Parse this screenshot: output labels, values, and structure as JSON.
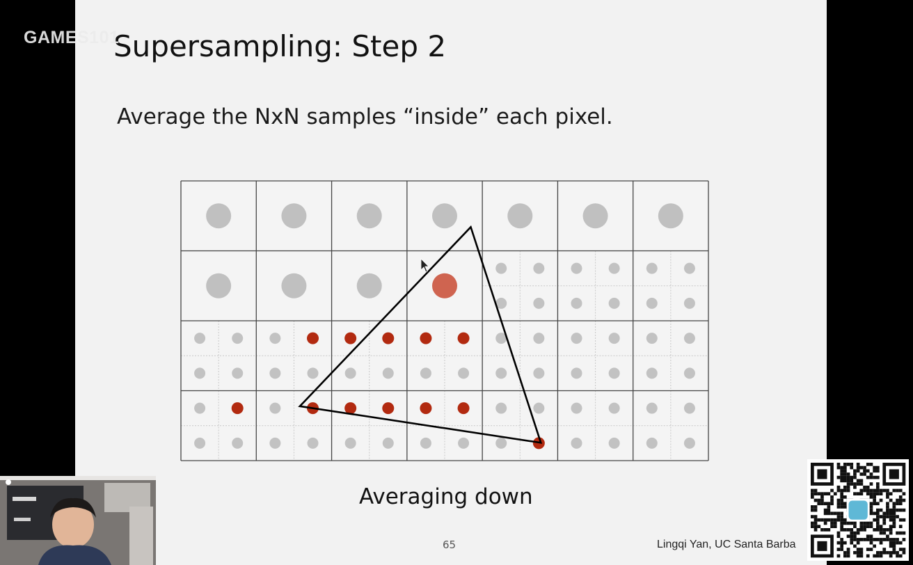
{
  "watermark": {
    "text": "GAMES101"
  },
  "slide": {
    "title": "Supersampling: Step 2",
    "subtitle": "Average the NxN samples “inside” each pixel.",
    "caption": "Averaging down",
    "page_number": "65",
    "credit": "Lingqi Yan, UC Santa Barba"
  },
  "figure": {
    "columns": 7,
    "rows": 4,
    "colors": {
      "averaged_sample": "#c0c0c0",
      "averaged_inside": "#cf6450",
      "subsample_outside": "#c2c2c2",
      "subsample_inside": "#b22a10",
      "grid_line": "#444444",
      "subgrid_line": "#c8c8c8"
    },
    "cells": [
      [
        "avg",
        "avg",
        "avg",
        "avg",
        "avg",
        "avg",
        "avg"
      ],
      [
        "avg",
        "avg",
        "avg",
        "avg-in",
        "sub",
        "sub",
        "sub"
      ],
      [
        "sub",
        "sub",
        "sub",
        "sub",
        "sub",
        "sub",
        "sub"
      ],
      [
        "sub",
        "sub",
        "sub",
        "sub",
        "sub",
        "sub",
        "sub"
      ]
    ],
    "inside_subsamples": [
      [
        4,
        3
      ],
      [
        5,
        3
      ],
      [
        6,
        3
      ],
      [
        7,
        3
      ],
      [
        4,
        4
      ],
      [
        5,
        4
      ],
      [
        6,
        4
      ],
      [
        7,
        4
      ],
      [
        3,
        4
      ],
      [
        1,
        6
      ],
      [
        3,
        6
      ],
      [
        4,
        6
      ],
      [
        5,
        6
      ],
      [
        6,
        6
      ],
      [
        7,
        6
      ],
      [
        9,
        7
      ]
    ],
    "triangle_vertices": [
      [
        3.846,
        0.66
      ],
      [
        1.578,
        3.222
      ],
      [
        4.776,
        3.744
      ]
    ]
  },
  "webcam": {
    "icon": "presenter-video"
  },
  "qr_code": {
    "icon": "qr-code"
  }
}
